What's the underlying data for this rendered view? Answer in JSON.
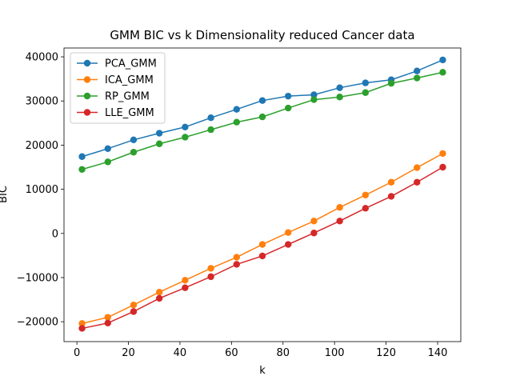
{
  "chart_data": {
    "type": "line",
    "title": "GMM BIC vs k Dimensionality reduced Cancer data",
    "xlabel": "k",
    "ylabel": "BIC",
    "x": [
      2,
      12,
      22,
      32,
      42,
      52,
      62,
      72,
      82,
      92,
      102,
      112,
      122,
      132,
      142
    ],
    "xlim": [
      -5,
      149
    ],
    "ylim": [
      -24500,
      42000
    ],
    "xticks": [
      0,
      20,
      40,
      60,
      80,
      100,
      120,
      140
    ],
    "yticks": [
      -20000,
      -10000,
      0,
      10000,
      20000,
      30000,
      40000
    ],
    "grid": false,
    "legend_position": "top-left",
    "series": [
      {
        "name": "PCA_GMM",
        "color": "#1f77b4",
        "values": [
          17400,
          19200,
          21200,
          22700,
          24100,
          26200,
          28100,
          30100,
          31100,
          31400,
          33000,
          34100,
          34800,
          36800,
          39300
        ]
      },
      {
        "name": "ICA_GMM",
        "color": "#ff7f0e",
        "values": [
          -20400,
          -19000,
          -16200,
          -13300,
          -10600,
          -7900,
          -5400,
          -2500,
          200,
          2800,
          5900,
          8700,
          11600,
          14900,
          18100
        ]
      },
      {
        "name": "RP_GMM",
        "color": "#2ca02c",
        "values": [
          14500,
          16200,
          18400,
          20300,
          21800,
          23500,
          25200,
          26400,
          28400,
          30300,
          30900,
          31900,
          34000,
          35200,
          36500
        ]
      },
      {
        "name": "LLE_GMM",
        "color": "#d62728",
        "values": [
          -21500,
          -20300,
          -17700,
          -14700,
          -12300,
          -9800,
          -7000,
          -5100,
          -2500,
          100,
          2800,
          5700,
          8400,
          11600,
          15000
        ]
      }
    ]
  }
}
